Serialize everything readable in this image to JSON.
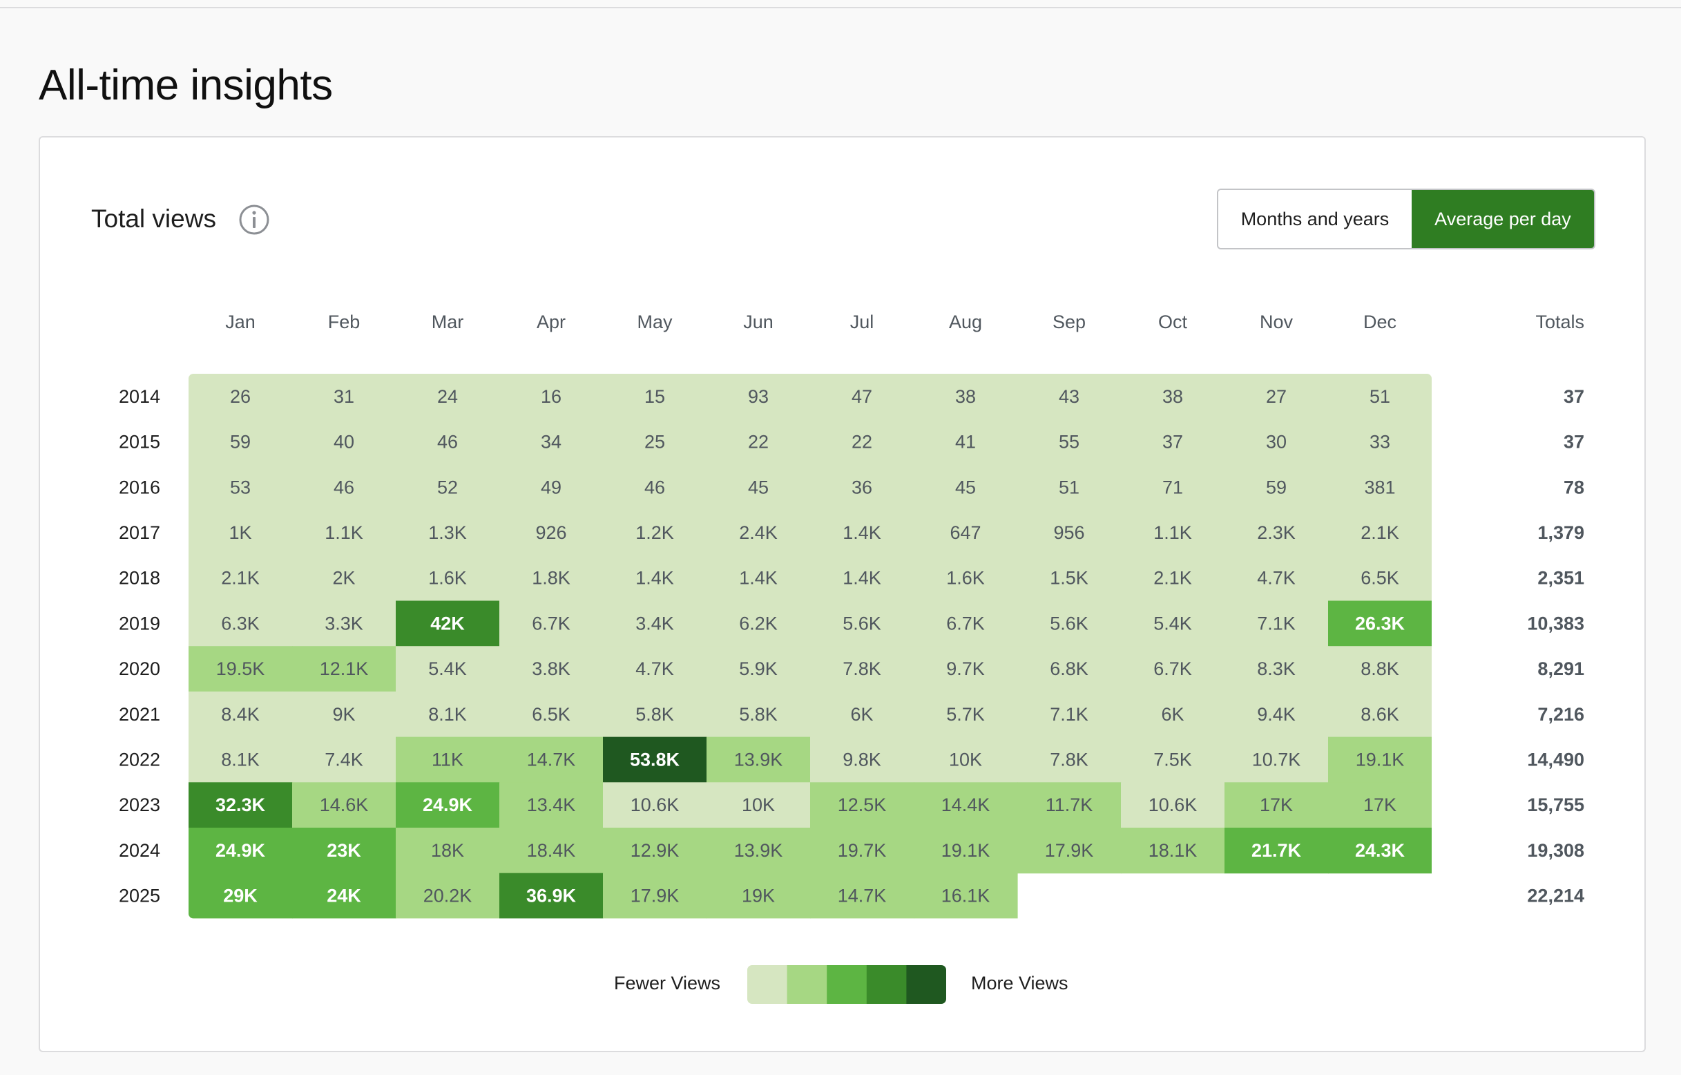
{
  "page": {
    "title": "All-time insights"
  },
  "card": {
    "title": "Total views",
    "info_icon": "info-icon",
    "toggle": {
      "option_a": "Months and years",
      "option_b": "Average per day",
      "active": "option_b"
    }
  },
  "legend": {
    "low_label": "Fewer Views",
    "high_label": "More Views"
  },
  "colors": {
    "levels": [
      "#d6e6c1",
      "#a6d783",
      "#5db543",
      "#3a8b2a",
      "#1f5820"
    ],
    "active_button": "#2f7d22"
  },
  "chart_data": {
    "type": "heatmap",
    "columns": [
      "Jan",
      "Feb",
      "Mar",
      "Apr",
      "May",
      "Jun",
      "Jul",
      "Aug",
      "Sep",
      "Oct",
      "Nov",
      "Dec"
    ],
    "totals_label": "Totals",
    "rows": [
      {
        "year": "2014",
        "cells": [
          {
            "label": "26",
            "level": 0
          },
          {
            "label": "31",
            "level": 0
          },
          {
            "label": "24",
            "level": 0
          },
          {
            "label": "16",
            "level": 0
          },
          {
            "label": "15",
            "level": 0
          },
          {
            "label": "93",
            "level": 0
          },
          {
            "label": "47",
            "level": 0
          },
          {
            "label": "38",
            "level": 0
          },
          {
            "label": "43",
            "level": 0
          },
          {
            "label": "38",
            "level": 0
          },
          {
            "label": "27",
            "level": 0
          },
          {
            "label": "51",
            "level": 0
          }
        ],
        "total": "37"
      },
      {
        "year": "2015",
        "cells": [
          {
            "label": "59",
            "level": 0
          },
          {
            "label": "40",
            "level": 0
          },
          {
            "label": "46",
            "level": 0
          },
          {
            "label": "34",
            "level": 0
          },
          {
            "label": "25",
            "level": 0
          },
          {
            "label": "22",
            "level": 0
          },
          {
            "label": "22",
            "level": 0
          },
          {
            "label": "41",
            "level": 0
          },
          {
            "label": "55",
            "level": 0
          },
          {
            "label": "37",
            "level": 0
          },
          {
            "label": "30",
            "level": 0
          },
          {
            "label": "33",
            "level": 0
          }
        ],
        "total": "37"
      },
      {
        "year": "2016",
        "cells": [
          {
            "label": "53",
            "level": 0
          },
          {
            "label": "46",
            "level": 0
          },
          {
            "label": "52",
            "level": 0
          },
          {
            "label": "49",
            "level": 0
          },
          {
            "label": "46",
            "level": 0
          },
          {
            "label": "45",
            "level": 0
          },
          {
            "label": "36",
            "level": 0
          },
          {
            "label": "45",
            "level": 0
          },
          {
            "label": "51",
            "level": 0
          },
          {
            "label": "71",
            "level": 0
          },
          {
            "label": "59",
            "level": 0
          },
          {
            "label": "381",
            "level": 0
          }
        ],
        "total": "78"
      },
      {
        "year": "2017",
        "cells": [
          {
            "label": "1K",
            "level": 0
          },
          {
            "label": "1.1K",
            "level": 0
          },
          {
            "label": "1.3K",
            "level": 0
          },
          {
            "label": "926",
            "level": 0
          },
          {
            "label": "1.2K",
            "level": 0
          },
          {
            "label": "2.4K",
            "level": 0
          },
          {
            "label": "1.4K",
            "level": 0
          },
          {
            "label": "647",
            "level": 0
          },
          {
            "label": "956",
            "level": 0
          },
          {
            "label": "1.1K",
            "level": 0
          },
          {
            "label": "2.3K",
            "level": 0
          },
          {
            "label": "2.1K",
            "level": 0
          }
        ],
        "total": "1,379"
      },
      {
        "year": "2018",
        "cells": [
          {
            "label": "2.1K",
            "level": 0
          },
          {
            "label": "2K",
            "level": 0
          },
          {
            "label": "1.6K",
            "level": 0
          },
          {
            "label": "1.8K",
            "level": 0
          },
          {
            "label": "1.4K",
            "level": 0
          },
          {
            "label": "1.4K",
            "level": 0
          },
          {
            "label": "1.4K",
            "level": 0
          },
          {
            "label": "1.6K",
            "level": 0
          },
          {
            "label": "1.5K",
            "level": 0
          },
          {
            "label": "2.1K",
            "level": 0
          },
          {
            "label": "4.7K",
            "level": 0
          },
          {
            "label": "6.5K",
            "level": 0
          }
        ],
        "total": "2,351"
      },
      {
        "year": "2019",
        "cells": [
          {
            "label": "6.3K",
            "level": 0
          },
          {
            "label": "3.3K",
            "level": 0
          },
          {
            "label": "42K",
            "level": 3
          },
          {
            "label": "6.7K",
            "level": 0
          },
          {
            "label": "3.4K",
            "level": 0
          },
          {
            "label": "6.2K",
            "level": 0
          },
          {
            "label": "5.6K",
            "level": 0
          },
          {
            "label": "6.7K",
            "level": 0
          },
          {
            "label": "5.6K",
            "level": 0
          },
          {
            "label": "5.4K",
            "level": 0
          },
          {
            "label": "7.1K",
            "level": 0
          },
          {
            "label": "26.3K",
            "level": 2
          }
        ],
        "total": "10,383"
      },
      {
        "year": "2020",
        "cells": [
          {
            "label": "19.5K",
            "level": 1
          },
          {
            "label": "12.1K",
            "level": 1
          },
          {
            "label": "5.4K",
            "level": 0
          },
          {
            "label": "3.8K",
            "level": 0
          },
          {
            "label": "4.7K",
            "level": 0
          },
          {
            "label": "5.9K",
            "level": 0
          },
          {
            "label": "7.8K",
            "level": 0
          },
          {
            "label": "9.7K",
            "level": 0
          },
          {
            "label": "6.8K",
            "level": 0
          },
          {
            "label": "6.7K",
            "level": 0
          },
          {
            "label": "8.3K",
            "level": 0
          },
          {
            "label": "8.8K",
            "level": 0
          }
        ],
        "total": "8,291"
      },
      {
        "year": "2021",
        "cells": [
          {
            "label": "8.4K",
            "level": 0
          },
          {
            "label": "9K",
            "level": 0
          },
          {
            "label": "8.1K",
            "level": 0
          },
          {
            "label": "6.5K",
            "level": 0
          },
          {
            "label": "5.8K",
            "level": 0
          },
          {
            "label": "5.8K",
            "level": 0
          },
          {
            "label": "6K",
            "level": 0
          },
          {
            "label": "5.7K",
            "level": 0
          },
          {
            "label": "7.1K",
            "level": 0
          },
          {
            "label": "6K",
            "level": 0
          },
          {
            "label": "9.4K",
            "level": 0
          },
          {
            "label": "8.6K",
            "level": 0
          }
        ],
        "total": "7,216"
      },
      {
        "year": "2022",
        "cells": [
          {
            "label": "8.1K",
            "level": 0
          },
          {
            "label": "7.4K",
            "level": 0
          },
          {
            "label": "11K",
            "level": 1
          },
          {
            "label": "14.7K",
            "level": 1
          },
          {
            "label": "53.8K",
            "level": 4
          },
          {
            "label": "13.9K",
            "level": 1
          },
          {
            "label": "9.8K",
            "level": 0
          },
          {
            "label": "10K",
            "level": 0
          },
          {
            "label": "7.8K",
            "level": 0
          },
          {
            "label": "7.5K",
            "level": 0
          },
          {
            "label": "10.7K",
            "level": 0
          },
          {
            "label": "19.1K",
            "level": 1
          }
        ],
        "total": "14,490"
      },
      {
        "year": "2023",
        "cells": [
          {
            "label": "32.3K",
            "level": 3
          },
          {
            "label": "14.6K",
            "level": 1
          },
          {
            "label": "24.9K",
            "level": 2
          },
          {
            "label": "13.4K",
            "level": 1
          },
          {
            "label": "10.6K",
            "level": 0
          },
          {
            "label": "10K",
            "level": 0
          },
          {
            "label": "12.5K",
            "level": 1
          },
          {
            "label": "14.4K",
            "level": 1
          },
          {
            "label": "11.7K",
            "level": 1
          },
          {
            "label": "10.6K",
            "level": 0
          },
          {
            "label": "17K",
            "level": 1
          },
          {
            "label": "17K",
            "level": 1
          }
        ],
        "total": "15,755"
      },
      {
        "year": "2024",
        "cells": [
          {
            "label": "24.9K",
            "level": 2
          },
          {
            "label": "23K",
            "level": 2
          },
          {
            "label": "18K",
            "level": 1
          },
          {
            "label": "18.4K",
            "level": 1
          },
          {
            "label": "12.9K",
            "level": 1
          },
          {
            "label": "13.9K",
            "level": 1
          },
          {
            "label": "19.7K",
            "level": 1
          },
          {
            "label": "19.1K",
            "level": 1
          },
          {
            "label": "17.9K",
            "level": 1
          },
          {
            "label": "18.1K",
            "level": 1
          },
          {
            "label": "21.7K",
            "level": 2
          },
          {
            "label": "24.3K",
            "level": 2
          }
        ],
        "total": "19,308"
      },
      {
        "year": "2025",
        "cells": [
          {
            "label": "29K",
            "level": 2
          },
          {
            "label": "24K",
            "level": 2
          },
          {
            "label": "20.2K",
            "level": 1
          },
          {
            "label": "36.9K",
            "level": 3
          },
          {
            "label": "17.9K",
            "level": 1
          },
          {
            "label": "19K",
            "level": 1
          },
          {
            "label": "14.7K",
            "level": 1
          },
          {
            "label": "16.1K",
            "level": 1
          },
          null,
          null,
          null,
          null
        ],
        "total": "22,214"
      }
    ]
  }
}
